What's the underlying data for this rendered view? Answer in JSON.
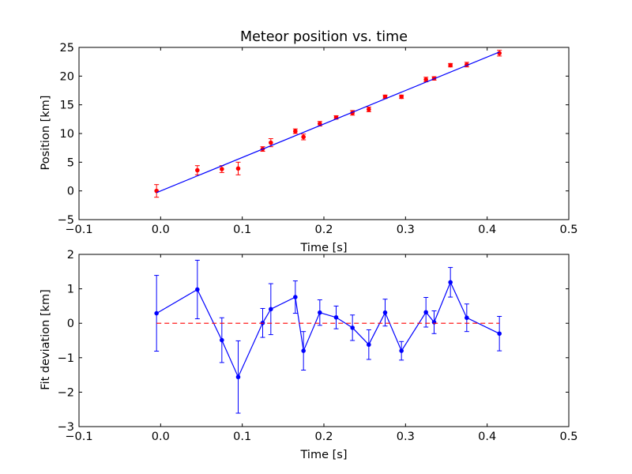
{
  "chart_data": [
    {
      "type": "scatter",
      "title": "Meteor position vs. time",
      "xlabel": "Time [s]",
      "ylabel": "Position [km]",
      "xlim": [
        -0.1,
        0.5
      ],
      "ylim": [
        -5,
        25
      ],
      "xticks": [
        "−0.1",
        "0.0",
        "0.1",
        "0.2",
        "0.3",
        "0.4",
        "0.5"
      ],
      "yticks": [
        "−5",
        "0",
        "5",
        "10",
        "15",
        "20",
        "25"
      ],
      "xtick_values": [
        -0.1,
        0.0,
        0.1,
        0.2,
        0.3,
        0.4,
        0.5
      ],
      "ytick_values": [
        -5,
        0,
        5,
        10,
        15,
        20,
        25
      ],
      "grid": false,
      "series": [
        {
          "kind": "errorbar",
          "color": "#ff0000",
          "x": [
            -0.005,
            0.045,
            0.075,
            0.095,
            0.125,
            0.135,
            0.165,
            0.175,
            0.195,
            0.215,
            0.235,
            0.255,
            0.275,
            0.295,
            0.325,
            0.335,
            0.355,
            0.375,
            0.415
          ],
          "y": [
            0.0,
            3.6,
            3.8,
            3.9,
            7.3,
            8.4,
            10.4,
            9.4,
            11.7,
            12.8,
            13.6,
            14.2,
            16.4,
            16.4,
            19.4,
            19.6,
            21.9,
            22.0,
            24.0
          ],
          "yerr": [
            1.1,
            0.8,
            0.6,
            1.1,
            0.4,
            0.7,
            0.4,
            0.5,
            0.4,
            0.3,
            0.4,
            0.4,
            0.3,
            0.3,
            0.4,
            0.3,
            0.3,
            0.4,
            0.5
          ]
        },
        {
          "kind": "line",
          "color": "#0000ff",
          "x": [
            -0.005,
            0.415
          ],
          "y": [
            -0.3,
            24.2
          ]
        }
      ]
    },
    {
      "type": "line",
      "title": "",
      "xlabel": "Time [s]",
      "ylabel": "Fit deviation [km]",
      "xlim": [
        -0.1,
        0.5
      ],
      "ylim": [
        -3,
        2
      ],
      "xticks": [
        "−0.1",
        "0.0",
        "0.1",
        "0.2",
        "0.3",
        "0.4",
        "0.5"
      ],
      "yticks": [
        "−3",
        "−2",
        "−1",
        "0",
        "1",
        "2"
      ],
      "xtick_values": [
        -0.1,
        0.0,
        0.1,
        0.2,
        0.3,
        0.4,
        0.5
      ],
      "ytick_values": [
        -3,
        -2,
        -1,
        0,
        1,
        2
      ],
      "grid": false,
      "series": [
        {
          "kind": "errorbar-line",
          "color": "#0000ff",
          "x": [
            -0.005,
            0.045,
            0.075,
            0.095,
            0.125,
            0.135,
            0.165,
            0.175,
            0.195,
            0.215,
            0.235,
            0.255,
            0.275,
            0.295,
            0.325,
            0.335,
            0.355,
            0.375,
            0.415
          ],
          "y": [
            0.29,
            0.98,
            -0.49,
            -1.56,
            0.01,
            0.41,
            0.76,
            -0.8,
            0.31,
            0.17,
            -0.13,
            -0.62,
            0.31,
            -0.8,
            0.32,
            0.03,
            1.19,
            0.16,
            -0.3
          ],
          "yerr": [
            1.1,
            0.85,
            0.65,
            1.05,
            0.42,
            0.74,
            0.47,
            0.56,
            0.37,
            0.33,
            0.37,
            0.43,
            0.39,
            0.27,
            0.43,
            0.33,
            0.43,
            0.4,
            0.5
          ]
        },
        {
          "kind": "dashed-line",
          "color": "#ff0000",
          "x": [
            -0.005,
            0.415
          ],
          "y": [
            0,
            0
          ]
        }
      ]
    }
  ]
}
